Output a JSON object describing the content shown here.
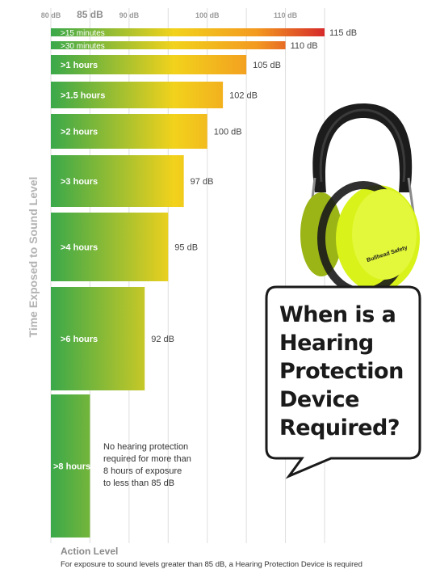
{
  "chart_data": {
    "type": "bar",
    "orientation": "horizontal",
    "ylabel": "Time Exposed to Sound Level",
    "xlabel": "Action Level",
    "x_ticks": [
      {
        "value": 80,
        "label": "80 dB",
        "major": false
      },
      {
        "value": 85,
        "label": "85 dB",
        "major": true
      },
      {
        "value": 90,
        "label": "90 dB",
        "major": false
      },
      {
        "value": 100,
        "label": "100 dB",
        "major": false
      },
      {
        "value": 110,
        "label": "110 dB",
        "major": false
      }
    ],
    "xlim": [
      80,
      120
    ],
    "grid": true,
    "categories": [
      ">15 minutes",
      ">30 minutes",
      ">1 hours",
      ">1.5 hours",
      ">2 hours",
      ">3 hours",
      ">4 hours",
      ">6 hours",
      ">8 hours"
    ],
    "values": [
      115,
      110,
      105,
      102,
      100,
      97,
      95,
      92,
      85
    ],
    "value_labels": [
      "115 dB",
      "110 dB",
      "105 dB",
      "102 dB",
      "100 dB",
      "97 dB",
      "95 dB",
      "92 dB",
      ""
    ],
    "annotation": "No hearing protection required for more than 8 hours of exposure to less than 85 dB",
    "footnote": "For exposure to sound levels greater than 85 dB, a Hearing Protection Device is required"
  },
  "bubble": {
    "lines": [
      "When is a",
      "Hearing",
      "Protection",
      "Device",
      "Required?"
    ]
  },
  "colors": {
    "green": "#3aa84a",
    "yellow": "#f2d21c",
    "orange": "#f39a20",
    "red": "#d62b2b",
    "earmuff_yellow": "#d8f21a"
  },
  "product": {
    "logo_text": "Bullhead Safety"
  }
}
